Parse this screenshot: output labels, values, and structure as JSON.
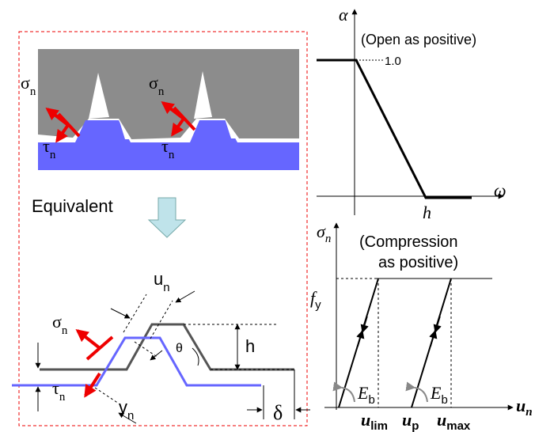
{
  "contact_figure": {
    "left_normal": {
      "symbol": "σ",
      "sub": "n"
    },
    "left_shear": {
      "symbol": "τ",
      "sub": "n"
    },
    "right_normal": {
      "symbol": "σ",
      "sub": "n"
    },
    "right_shear": {
      "symbol": "τ",
      "sub": "n"
    }
  },
  "equivalent_label": "Equivalent",
  "joint_model": {
    "normal_displacement": {
      "symbol": "u",
      "sub": "n"
    },
    "normal_stress": {
      "symbol": "σ",
      "sub": "n"
    },
    "shear_stress": {
      "symbol": "τ",
      "sub": "n"
    },
    "shear_displacement": {
      "symbol": "v",
      "sub": "n"
    },
    "height": "h",
    "angle": "θ",
    "offset": "δ"
  },
  "damage_plot": {
    "y_label": "α",
    "note": "(Open as positive)",
    "level": "1.0",
    "x_label": "ω",
    "x_mark": "h"
  },
  "compression_plot": {
    "y_label": {
      "symbol": "σ",
      "sub": "n"
    },
    "note_line1": "(Compression",
    "note_line2": "as positive)",
    "yield": {
      "symbol": "f",
      "sub": "y"
    },
    "stiffness_1": {
      "symbol": "E",
      "sub": "b"
    },
    "stiffness_2": {
      "symbol": "E",
      "sub": "b"
    },
    "x_mark_1": {
      "symbol": "u",
      "sub": "lim"
    },
    "x_mark_2": {
      "symbol": "u",
      "sub": "p"
    },
    "x_mark_3": {
      "symbol": "u",
      "sub": "max"
    },
    "x_label": {
      "symbol": "u",
      "sub": "n"
    }
  }
}
